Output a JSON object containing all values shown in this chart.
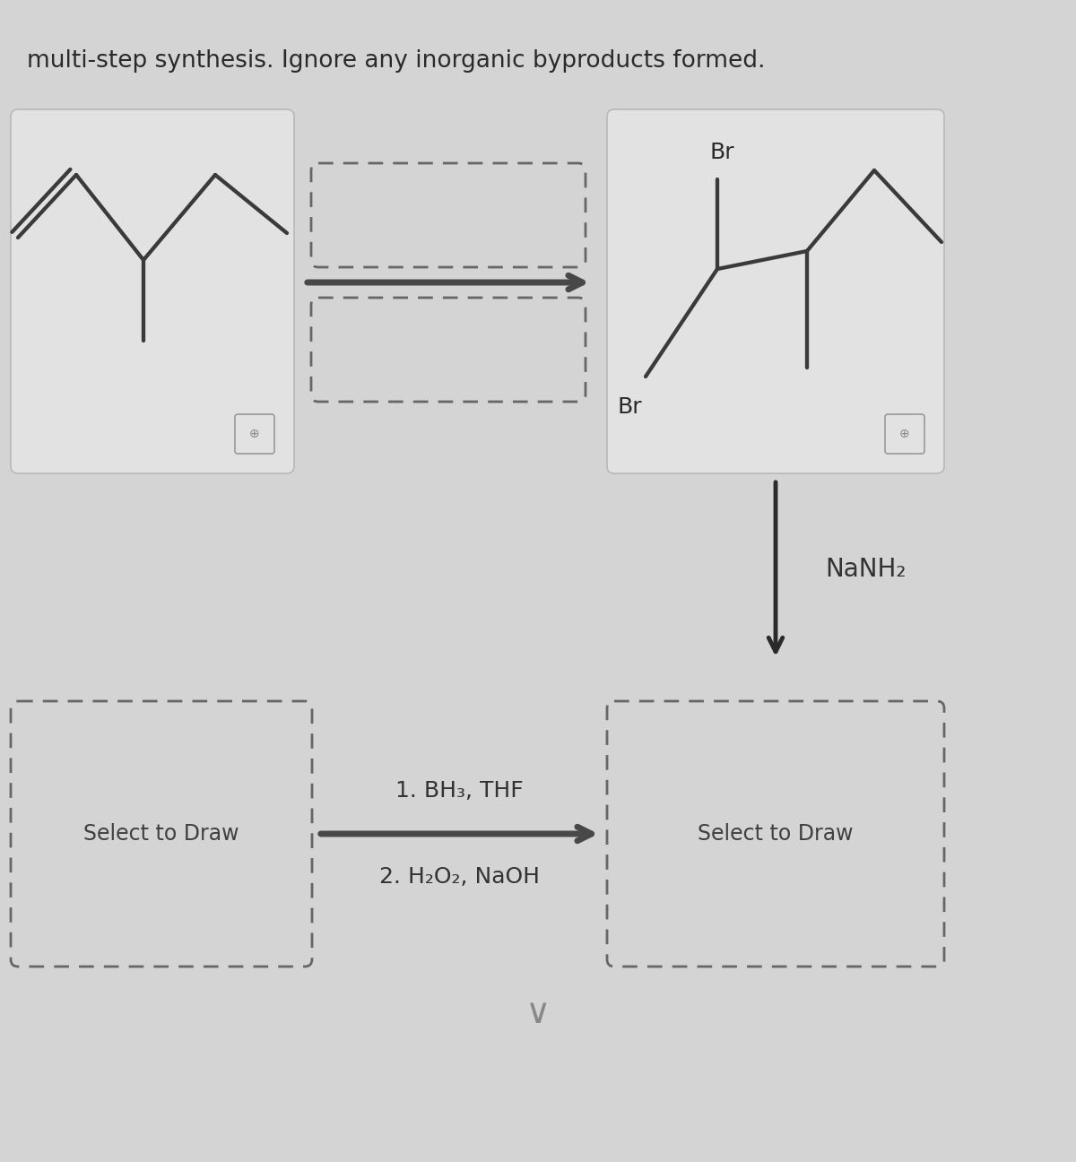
{
  "bg_color": "#d4d4d4",
  "title_line1": "multi-step synthesis. Ignore any inorganic byproducts formed.",
  "title_color": "#2a2a2a",
  "title_fontsize": 19,
  "solid_box_face": "#e2e2e2",
  "solid_box_edge": "#b8b8b8",
  "dash_box_edge": "#666666",
  "line_color": "#3a3a3a",
  "arrow_color": "#484848",
  "text_color": "#2a2a2a",
  "reagent_color": "#333333",
  "nanh2_text": "NaNH₂",
  "step1_text": "1. BH₃, THF",
  "step2_text": "2. H₂O₂, NaOH",
  "select_draw_text": "Select to Draw",
  "br_label": "Br",
  "select_fontsize": 17,
  "reagent_fontsize": 18,
  "mol_lw": 2.8
}
